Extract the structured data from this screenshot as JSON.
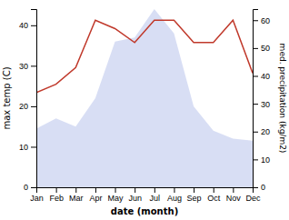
{
  "chart_data": {
    "type": "line",
    "categories": [
      "Jan",
      "Feb",
      "Mar",
      "Apr",
      "May",
      "Jun",
      "Jul",
      "Aug",
      "Sep",
      "Oct",
      "Nov",
      "Dec"
    ],
    "xlabel": "date (month)",
    "ylabel": "max temp (C)",
    "y2label": "med. precipitation (kg/m2)",
    "ylim": [
      0,
      44
    ],
    "yticks": [
      0,
      10,
      20,
      30,
      40
    ],
    "y2lim": [
      0,
      64
    ],
    "y2ticks": [
      0,
      10,
      20,
      30,
      40,
      50,
      60
    ],
    "grid": false,
    "series": [
      {
        "type": "area",
        "color": "#c8d0f0",
        "values": [
          14.5,
          17,
          15,
          22,
          36,
          37,
          44,
          38,
          20,
          14,
          12,
          11.5
        ]
      },
      {
        "type": "line",
        "color": "#c0392b",
        "axis": "y2",
        "values": [
          34,
          37,
          43,
          60,
          57,
          52,
          60,
          60,
          52,
          52,
          60,
          41
        ]
      }
    ]
  }
}
